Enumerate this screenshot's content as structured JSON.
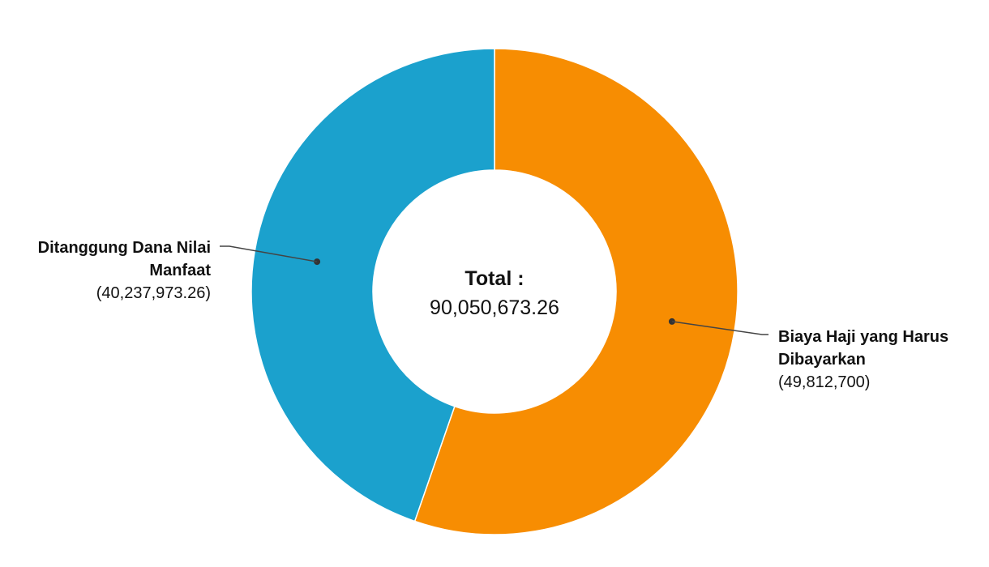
{
  "chart_data": {
    "type": "pie",
    "variant": "donut",
    "center_label": {
      "title": "Total :",
      "value_text": "90,050,673.26"
    },
    "slices": [
      {
        "name_lines": [
          "Biaya Haji yang Harus",
          "Dibayarkan"
        ],
        "value": 49812700,
        "value_text": "(49,812,700)",
        "color": "#F78D02"
      },
      {
        "name_lines": [
          "Ditanggung Dana Nilai",
          "Manfaat"
        ],
        "value": 40237973.26,
        "value_text": "(40,237,973.26)",
        "color": "#1BA1CD"
      }
    ],
    "start_angle": "top (12 o'clock)",
    "direction": "clockwise",
    "legend": "none",
    "labels": "outside with leader lines"
  }
}
